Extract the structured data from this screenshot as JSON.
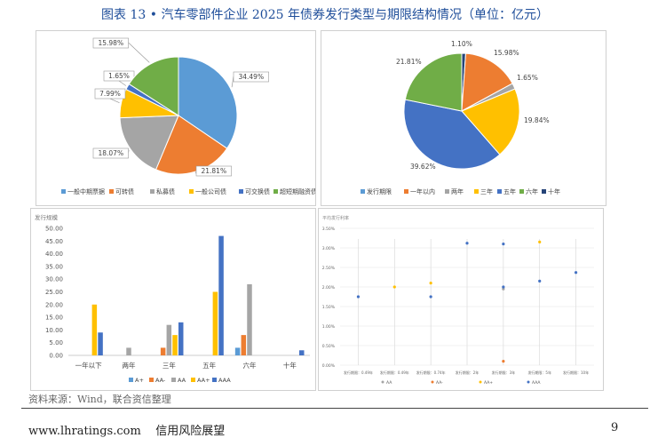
{
  "title": "图表 13 • 汽车零部件企业 2025 年债券发行类型与期限结构情况（单位：亿元）",
  "colors": {
    "blue": "#5b9bd5",
    "orange": "#ed7d31",
    "gray": "#a5a5a5",
    "yellow": "#ffc000",
    "darkblue": "#4472c4",
    "green": "#70ad47",
    "navy": "#264478"
  },
  "chart_data": [
    {
      "type": "pie",
      "labels": [
        "一般中期票据",
        "可转债",
        "私募债",
        "一般公司债",
        "可交换债",
        "超短期融资债券"
      ],
      "values": [
        34.49,
        21.81,
        18.07,
        7.99,
        1.65,
        15.98
      ],
      "data_labels": [
        "34.49%",
        "21.81%",
        "18.07%",
        "7.99%",
        "1.65%",
        "15.98%"
      ],
      "colors": [
        "#5b9bd5",
        "#ed7d31",
        "#a5a5a5",
        "#ffc000",
        "#4472c4",
        "#70ad47"
      ],
      "legend": "bottom"
    },
    {
      "type": "pie",
      "labels": [
        "发行期限",
        "一年以内",
        "两年",
        "三年",
        "五年",
        "六年",
        "十年"
      ],
      "values": [
        0,
        15.98,
        1.65,
        19.84,
        39.62,
        21.81,
        1.1
      ],
      "data_labels": [
        "",
        "15.98%",
        "1.65%",
        "19.84%",
        "39.62%",
        "21.81%",
        "1.10%"
      ],
      "colors": [
        "#5b9bd5",
        "#ed7d31",
        "#a5a5a5",
        "#ffc000",
        "#4472c4",
        "#70ad47",
        "#264478"
      ],
      "legend": "bottom"
    },
    {
      "type": "bar",
      "title": "发行规模",
      "categories": [
        "一年以下",
        "两年",
        "三年",
        "五年",
        "六年",
        "十年"
      ],
      "series": [
        {
          "name": "A+",
          "color": "#5b9bd5",
          "values": [
            0,
            0,
            0,
            0,
            3,
            0
          ]
        },
        {
          "name": "AA-",
          "color": "#ed7d31",
          "values": [
            0,
            0,
            3,
            0,
            8,
            0
          ]
        },
        {
          "name": "AA",
          "color": "#a5a5a5",
          "values": [
            0,
            3,
            12,
            0,
            28,
            0
          ]
        },
        {
          "name": "AA+",
          "color": "#ffc000",
          "values": [
            20,
            0,
            8,
            25,
            0,
            0
          ]
        },
        {
          "name": "AAA",
          "color": "#4472c4",
          "values": [
            9,
            0,
            13,
            47,
            0,
            2
          ]
        }
      ],
      "ylim": [
        0,
        50
      ],
      "yticks": [
        "0.00",
        "5.00",
        "10.00",
        "15.00",
        "20.00",
        "25.00",
        "30.00",
        "35.00",
        "40.00",
        "45.00",
        "50.00"
      ],
      "legend": "bottom",
      "grid": false
    },
    {
      "type": "scatter",
      "title": "平均发行利率",
      "categories": [
        "发行期限：0.49年",
        "发行期限：0.49年",
        "发行期限：0.74年",
        "发行期限：2年",
        "发行期限：3年",
        "发行期限：5年",
        "发行期限：10年"
      ],
      "series": [
        {
          "name": "AA",
          "color": "#a5a5a5",
          "points": [
            [
              4,
              1.95
            ]
          ]
        },
        {
          "name": "AA-",
          "color": "#ed7d31",
          "points": [
            [
              4,
              0.1
            ]
          ]
        },
        {
          "name": "AA+",
          "color": "#ffc000",
          "points": [
            [
              1,
              2.0
            ],
            [
              2,
              2.1
            ],
            [
              5,
              3.15
            ]
          ]
        },
        {
          "name": "AAA",
          "color": "#4472c4",
          "points": [
            [
              0,
              1.75
            ],
            [
              2,
              1.75
            ],
            [
              3,
              3.12
            ],
            [
              4,
              3.1
            ],
            [
              4,
              2.0
            ],
            [
              5,
              2.15
            ],
            [
              6,
              2.37
            ]
          ]
        }
      ],
      "ylim": [
        0,
        3.5
      ],
      "yticks": [
        "0.00%",
        "0.50%",
        "1.00%",
        "1.50%",
        "2.00%",
        "2.50%",
        "3.00%",
        "3.50%"
      ],
      "legend": "bottom"
    }
  ],
  "source": "资料来源：Wind，联合资信整理",
  "footer": {
    "left": "www.lhratings.com    信用风险展望",
    "page": "9"
  }
}
